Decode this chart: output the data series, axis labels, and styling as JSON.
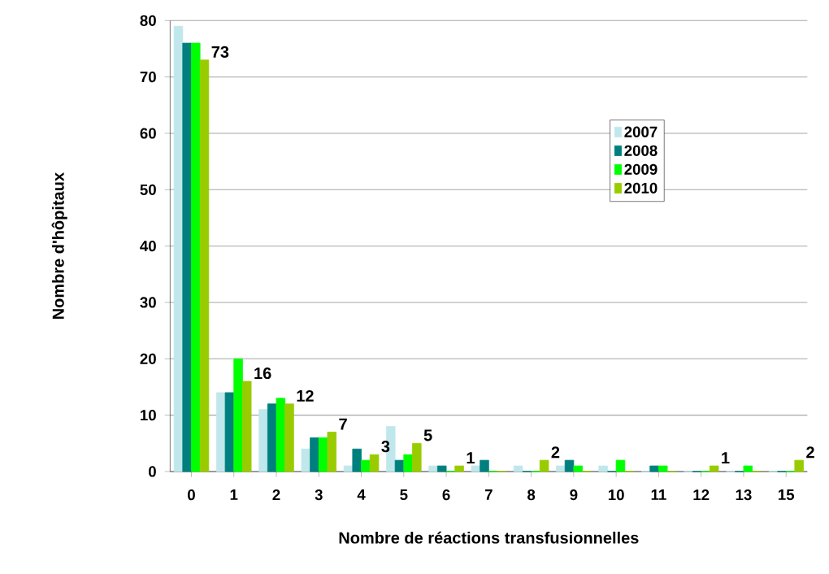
{
  "chart_data": {
    "type": "bar",
    "xlabel": "Nombre de réactions transfusionnelles",
    "ylabel": "Nombre d'hôpitaux",
    "categories": [
      "0",
      "1",
      "2",
      "3",
      "4",
      "5",
      "6",
      "7",
      "8",
      "9",
      "10",
      "11",
      "12",
      "13",
      "15"
    ],
    "series": [
      {
        "name": "2007",
        "color": "#c0e8ec",
        "values": [
          79,
          14,
          11,
          4,
          1,
          8,
          1,
          1,
          1,
          1,
          1,
          0,
          0,
          0,
          0
        ]
      },
      {
        "name": "2008",
        "color": "#007f7f",
        "values": [
          76,
          14,
          12,
          6,
          4,
          2,
          1,
          2,
          0,
          2,
          0,
          1,
          0,
          0,
          0
        ]
      },
      {
        "name": "2009",
        "color": "#00ff00",
        "values": [
          76,
          20,
          13,
          6,
          2,
          3,
          0,
          0,
          0,
          1,
          2,
          1,
          0,
          1,
          0
        ]
      },
      {
        "name": "2010",
        "color": "#99cc00",
        "values": [
          73,
          16,
          12,
          7,
          3,
          5,
          1,
          0,
          2,
          0,
          0,
          0,
          1,
          0,
          2
        ],
        "value_labels": [
          "73",
          "16",
          "12",
          "7",
          "3",
          "5",
          "1",
          null,
          "2",
          null,
          null,
          null,
          "1",
          null,
          "2"
        ]
      }
    ],
    "ylim": [
      0,
      80
    ],
    "yticks": [
      0,
      10,
      20,
      30,
      40,
      50,
      60,
      70,
      80
    ],
    "grid": "y",
    "legend": "right"
  }
}
